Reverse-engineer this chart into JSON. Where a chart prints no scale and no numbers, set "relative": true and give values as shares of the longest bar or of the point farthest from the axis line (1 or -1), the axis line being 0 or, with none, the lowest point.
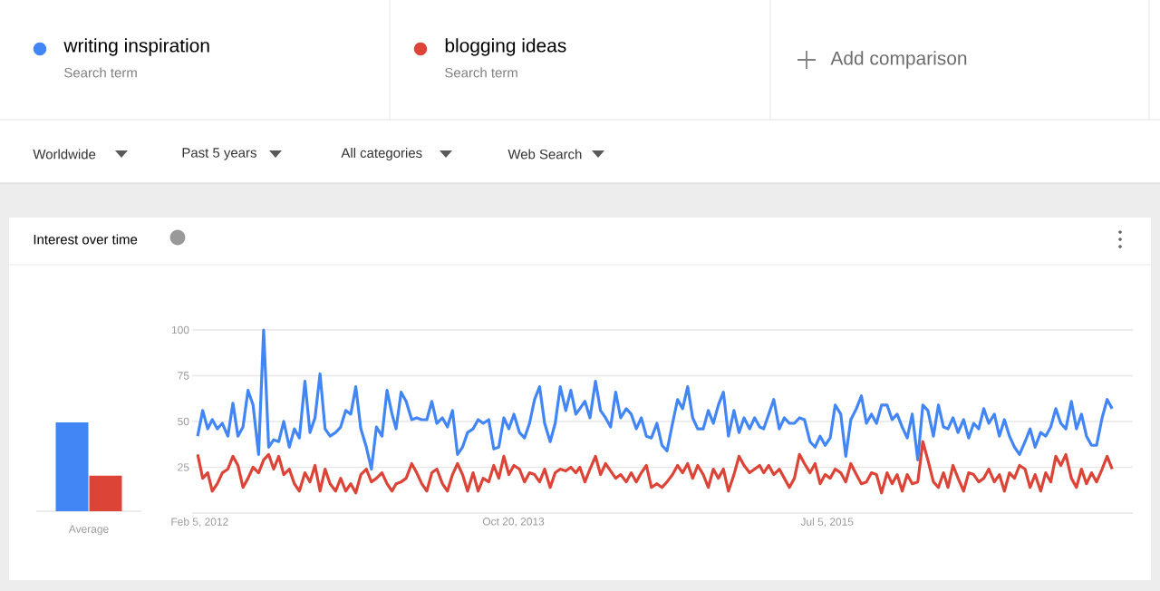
{
  "chart_data": [
    {
      "type": "line",
      "title": "Interest over time",
      "legend": "top",
      "grid": "y",
      "xlim": [
        "2012-01-21",
        "2017-03-03"
      ],
      "ylim": [
        0,
        100
      ],
      "xticks": [
        {
          "value": "2012-02-05",
          "label": "Feb 5, 2012"
        },
        {
          "value": "2013-10-20",
          "label": "Oct 20, 2013"
        },
        {
          "value": "2015-07-05",
          "label": "Jul 5, 2015"
        }
      ],
      "yticks": [
        {
          "value": 0,
          "label": null
        },
        25,
        50,
        75,
        100
      ],
      "annotations": [
        "Search term",
        "Search term",
        "Add comparison",
        "Worldwide",
        "Past 5 years",
        "All categories",
        "Web Search"
      ],
      "x": [
        "2012-02-01",
        "2012-02-11",
        "2012-02-21",
        "2012-03-01",
        "2012-03-11",
        "2012-03-21",
        "2012-04-01",
        "2012-04-11",
        "2012-04-21",
        "2012-05-01",
        "2012-05-11",
        "2012-05-21",
        "2012-06-01",
        "2012-06-11",
        "2012-06-21",
        "2012-07-01",
        "2012-07-11",
        "2012-07-21",
        "2012-08-01",
        "2012-08-11",
        "2012-08-21",
        "2012-09-01",
        "2012-09-11",
        "2012-09-21",
        "2012-10-01",
        "2012-10-11",
        "2012-10-21",
        "2012-11-01",
        "2012-11-11",
        "2012-11-21",
        "2012-12-01",
        "2012-12-11",
        "2012-12-21",
        "2013-01-01",
        "2013-01-11",
        "2013-01-21",
        "2013-02-01",
        "2013-02-11",
        "2013-02-21",
        "2013-03-01",
        "2013-03-11",
        "2013-03-21",
        "2013-04-01",
        "2013-04-11",
        "2013-04-21",
        "2013-05-01",
        "2013-05-11",
        "2013-05-21",
        "2013-06-01",
        "2013-06-11",
        "2013-06-21",
        "2013-07-01",
        "2013-07-11",
        "2013-07-21",
        "2013-08-01",
        "2013-08-11",
        "2013-08-21",
        "2013-09-01",
        "2013-09-11",
        "2013-09-21",
        "2013-10-01",
        "2013-10-11",
        "2013-10-21",
        "2013-11-01",
        "2013-11-11",
        "2013-11-21",
        "2013-12-01",
        "2013-12-11",
        "2013-12-21",
        "2014-01-01",
        "2014-01-11",
        "2014-01-21",
        "2014-02-01",
        "2014-02-11",
        "2014-02-21",
        "2014-03-01",
        "2014-03-11",
        "2014-03-21",
        "2014-04-01",
        "2014-04-11",
        "2014-04-21",
        "2014-05-01",
        "2014-05-11",
        "2014-05-21",
        "2014-06-01",
        "2014-06-11",
        "2014-06-21",
        "2014-07-01",
        "2014-07-11",
        "2014-07-21",
        "2014-08-01",
        "2014-08-11",
        "2014-08-21",
        "2014-09-01",
        "2014-09-11",
        "2014-09-21",
        "2014-10-01",
        "2014-10-11",
        "2014-10-21",
        "2014-11-01",
        "2014-11-11",
        "2014-11-21",
        "2014-12-01",
        "2014-12-11",
        "2014-12-21",
        "2015-01-01",
        "2015-01-11",
        "2015-01-21",
        "2015-02-01",
        "2015-02-11",
        "2015-02-21",
        "2015-03-01",
        "2015-03-11",
        "2015-03-21",
        "2015-04-01",
        "2015-04-11",
        "2015-04-21",
        "2015-05-01",
        "2015-05-11",
        "2015-05-21",
        "2015-06-01",
        "2015-06-11",
        "2015-06-21",
        "2015-07-01",
        "2015-07-11",
        "2015-07-21",
        "2015-08-01",
        "2015-08-11",
        "2015-08-21",
        "2015-09-01",
        "2015-09-11",
        "2015-09-21",
        "2015-10-01",
        "2015-10-11",
        "2015-10-21",
        "2015-11-01",
        "2015-11-11",
        "2015-11-21",
        "2015-12-01",
        "2015-12-11",
        "2015-12-21",
        "2016-01-01",
        "2016-01-11",
        "2016-01-21",
        "2016-02-01",
        "2016-02-11",
        "2016-02-21",
        "2016-03-01",
        "2016-03-11",
        "2016-03-21",
        "2016-04-01",
        "2016-04-11",
        "2016-04-21",
        "2016-05-01",
        "2016-05-11",
        "2016-05-21",
        "2016-06-01",
        "2016-06-11",
        "2016-06-21",
        "2016-07-01",
        "2016-07-11",
        "2016-07-21",
        "2016-08-01",
        "2016-08-11",
        "2016-08-21",
        "2016-09-01",
        "2016-09-11",
        "2016-09-21",
        "2016-10-01",
        "2016-10-11",
        "2016-10-21",
        "2016-11-01",
        "2016-11-11",
        "2016-11-21",
        "2016-12-01",
        "2016-12-11",
        "2016-12-21",
        "2017-01-01",
        "2017-01-11",
        "2017-01-21"
      ],
      "series": [
        {
          "name": "writing inspiration",
          "color": "#4285f4",
          "values": [
            42,
            56,
            46,
            51,
            46,
            49,
            42,
            60,
            42,
            47,
            67,
            59,
            32,
            100,
            36,
            40,
            39,
            50,
            36,
            46,
            41,
            72,
            44,
            52,
            76,
            46,
            42,
            44,
            47,
            56,
            54,
            69,
            46,
            36,
            24,
            47,
            42,
            67,
            54,
            46,
            66,
            61,
            51,
            52,
            51,
            51,
            61,
            49,
            52,
            47,
            56,
            32,
            36,
            44,
            46,
            51,
            49,
            51,
            35,
            36,
            52,
            46,
            54,
            44,
            41,
            49,
            62,
            69,
            49,
            39,
            49,
            69,
            56,
            67,
            54,
            57,
            61,
            52,
            72,
            56,
            52,
            47,
            66,
            52,
            57,
            54,
            46,
            52,
            42,
            41,
            49,
            37,
            34,
            49,
            62,
            57,
            69,
            52,
            46,
            46,
            56,
            49,
            59,
            66,
            42,
            56,
            44,
            52,
            46,
            52,
            47,
            46,
            54,
            62,
            46,
            52,
            49,
            49,
            52,
            51,
            39,
            36,
            42,
            37,
            41,
            59,
            54,
            31,
            51,
            57,
            64,
            49,
            54,
            49,
            59,
            59,
            51,
            54,
            47,
            41,
            54,
            29,
            59,
            56,
            42,
            59,
            47,
            46,
            52,
            44,
            51,
            41,
            49,
            46,
            57,
            49,
            54,
            42,
            51,
            42,
            36,
            32,
            39,
            46,
            36,
            44,
            42,
            47,
            57,
            49,
            46,
            61,
            46,
            54,
            42,
            37,
            37,
            52,
            62,
            57
          ]
        },
        {
          "name": "blogging ideas",
          "color": "#db4437",
          "values": [
            32,
            19,
            22,
            12,
            16,
            22,
            24,
            31,
            26,
            14,
            19,
            25,
            22,
            29,
            32,
            24,
            31,
            21,
            24,
            16,
            12,
            22,
            17,
            26,
            12,
            24,
            16,
            12,
            19,
            12,
            16,
            11,
            21,
            24,
            17,
            19,
            22,
            16,
            12,
            16,
            17,
            19,
            27,
            22,
            16,
            12,
            22,
            24,
            16,
            12,
            21,
            27,
            21,
            12,
            22,
            12,
            19,
            17,
            26,
            19,
            31,
            21,
            26,
            24,
            17,
            22,
            21,
            17,
            24,
            14,
            22,
            24,
            23,
            25,
            22,
            25,
            17,
            24,
            31,
            21,
            27,
            23,
            19,
            21,
            17,
            22,
            17,
            22,
            26,
            14,
            16,
            14,
            17,
            21,
            26,
            22,
            27,
            19,
            26,
            21,
            14,
            24,
            19,
            24,
            12,
            21,
            31,
            26,
            22,
            24,
            26,
            22,
            26,
            21,
            24,
            19,
            14,
            19,
            32,
            27,
            22,
            27,
            16,
            21,
            19,
            24,
            22,
            17,
            27,
            21,
            16,
            17,
            22,
            21,
            11,
            22,
            16,
            21,
            12,
            21,
            16,
            17,
            39,
            29,
            17,
            14,
            22,
            14,
            26,
            19,
            12,
            22,
            21,
            17,
            19,
            24,
            17,
            21,
            12,
            22,
            19,
            26,
            24,
            14,
            21,
            12,
            22,
            17,
            31,
            26,
            32,
            19,
            14,
            24,
            16,
            22,
            17,
            24,
            31,
            24
          ]
        }
      ]
    },
    {
      "type": "bar",
      "relative": true,
      "categories": [
        "Average"
      ],
      "series": [
        {
          "color": "#4285f4",
          "values": [
            1
          ]
        },
        {
          "color": "#db4437",
          "values": [
            0.4
          ]
        }
      ]
    }
  ]
}
